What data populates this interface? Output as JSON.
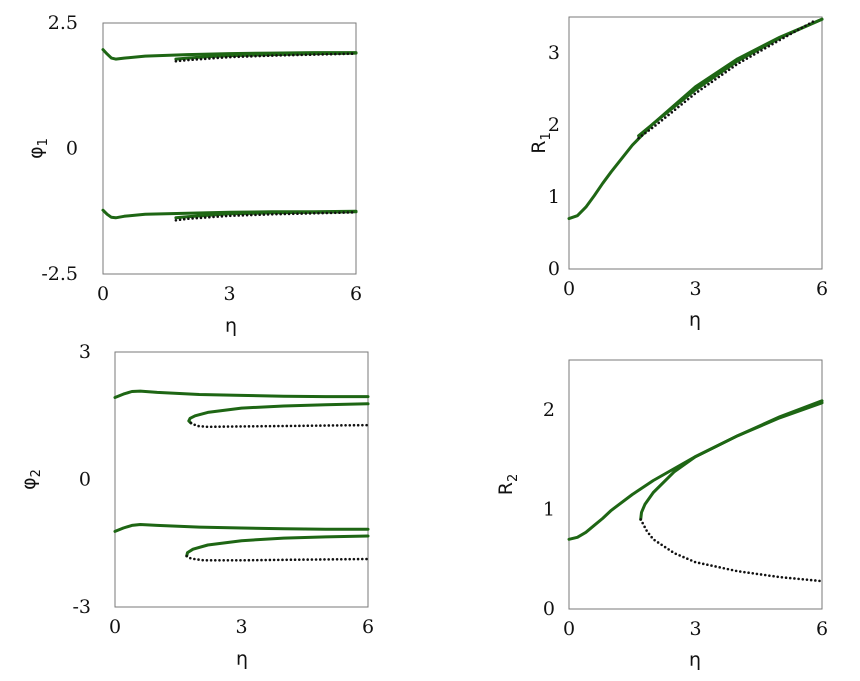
{
  "chart_data": [
    {
      "type": "line",
      "xlabel": "η",
      "ylabel": "φ",
      "ylabel_sub": "1",
      "xlim": [
        0,
        6
      ],
      "ylim": [
        -2.5,
        2.5
      ],
      "xticks": [
        "0",
        "3",
        "6"
      ],
      "yticks": [
        "2.5",
        "0",
        "-2.5"
      ],
      "series": [
        {
          "style": "solid",
          "points": [
            [
              0.0,
              1.97
            ],
            [
              0.1,
              1.88
            ],
            [
              0.2,
              1.8
            ],
            [
              0.3,
              1.78
            ],
            [
              0.5,
              1.8
            ],
            [
              1.0,
              1.84
            ],
            [
              2.0,
              1.87
            ],
            [
              3.0,
              1.89
            ],
            [
              4.0,
              1.9
            ],
            [
              5.0,
              1.91
            ],
            [
              6.0,
              1.91
            ]
          ]
        },
        {
          "style": "solid",
          "points": [
            [
              1.73,
              1.78
            ],
            [
              2.0,
              1.8
            ],
            [
              2.5,
              1.83
            ],
            [
              3.0,
              1.85
            ],
            [
              4.0,
              1.87
            ],
            [
              5.0,
              1.89
            ],
            [
              6.0,
              1.9
            ]
          ]
        },
        {
          "style": "dotted",
          "points": [
            [
              1.73,
              1.74
            ],
            [
              2.0,
              1.76
            ],
            [
              2.5,
              1.79
            ],
            [
              3.0,
              1.82
            ],
            [
              4.0,
              1.85
            ],
            [
              5.0,
              1.87
            ],
            [
              6.0,
              1.89
            ]
          ]
        },
        {
          "style": "solid",
          "points": [
            [
              0.0,
              -1.23
            ],
            [
              0.1,
              -1.31
            ],
            [
              0.2,
              -1.37
            ],
            [
              0.3,
              -1.38
            ],
            [
              0.5,
              -1.35
            ],
            [
              1.0,
              -1.31
            ],
            [
              2.0,
              -1.29
            ],
            [
              3.0,
              -1.27
            ],
            [
              4.0,
              -1.26
            ],
            [
              5.0,
              -1.26
            ],
            [
              6.0,
              -1.25
            ]
          ]
        },
        {
          "style": "solid",
          "points": [
            [
              1.73,
              -1.38
            ],
            [
              2.0,
              -1.36
            ],
            [
              2.5,
              -1.33
            ],
            [
              3.0,
              -1.3
            ],
            [
              4.0,
              -1.28
            ],
            [
              5.0,
              -1.27
            ],
            [
              6.0,
              -1.26
            ]
          ]
        },
        {
          "style": "dotted",
          "points": [
            [
              1.73,
              -1.43
            ],
            [
              2.0,
              -1.4
            ],
            [
              2.5,
              -1.37
            ],
            [
              3.0,
              -1.34
            ],
            [
              4.0,
              -1.31
            ],
            [
              5.0,
              -1.29
            ],
            [
              6.0,
              -1.27
            ]
          ]
        }
      ]
    },
    {
      "type": "line",
      "xlabel": "η",
      "ylabel": "R",
      "ylabel_sub": "1",
      "xlim": [
        0,
        6
      ],
      "ylim": [
        0,
        3.5
      ],
      "xticks": [
        "0",
        "3",
        "6"
      ],
      "yticks": [
        "0",
        "1",
        "2",
        "3"
      ],
      "series": [
        {
          "style": "solid",
          "points": [
            [
              0.0,
              0.7
            ],
            [
              0.2,
              0.74
            ],
            [
              0.4,
              0.86
            ],
            [
              0.6,
              1.02
            ],
            [
              0.8,
              1.19
            ],
            [
              1.0,
              1.35
            ],
            [
              1.5,
              1.72
            ],
            [
              2.0,
              2.02
            ],
            [
              3.0,
              2.53
            ],
            [
              4.0,
              2.92
            ],
            [
              5.0,
              3.22
            ],
            [
              6.0,
              3.47
            ]
          ]
        },
        {
          "style": "solid",
          "points": [
            [
              1.65,
              1.85
            ],
            [
              2.0,
              2.02
            ],
            [
              3.0,
              2.49
            ],
            [
              4.0,
              2.89
            ],
            [
              5.0,
              3.21
            ],
            [
              6.0,
              3.47
            ]
          ]
        },
        {
          "style": "dotted",
          "points": [
            [
              1.65,
              1.82
            ],
            [
              2.0,
              1.97
            ],
            [
              3.0,
              2.44
            ],
            [
              4.0,
              2.85
            ],
            [
              5.0,
              3.18
            ],
            [
              5.8,
              3.44
            ]
          ]
        }
      ]
    },
    {
      "type": "line",
      "xlabel": "η",
      "ylabel": "φ",
      "ylabel_sub": "2",
      "xlim": [
        0,
        6
      ],
      "ylim": [
        -3,
        3
      ],
      "xticks": [
        "0",
        "3",
        "6"
      ],
      "yticks": [
        "3",
        "0",
        "-3"
      ],
      "series": [
        {
          "style": "solid",
          "points": [
            [
              0.0,
              1.93
            ],
            [
              0.2,
              2.01
            ],
            [
              0.4,
              2.07
            ],
            [
              0.6,
              2.08
            ],
            [
              1.0,
              2.05
            ],
            [
              2.0,
              2.0
            ],
            [
              3.0,
              1.98
            ],
            [
              4.0,
              1.96
            ],
            [
              5.0,
              1.95
            ],
            [
              6.0,
              1.95
            ]
          ]
        },
        {
          "style": "solid",
          "points": [
            [
              1.8,
              1.33
            ],
            [
              1.75,
              1.38
            ],
            [
              1.78,
              1.44
            ],
            [
              1.9,
              1.5
            ],
            [
              2.2,
              1.58
            ],
            [
              3.0,
              1.68
            ],
            [
              4.0,
              1.73
            ],
            [
              5.0,
              1.76
            ],
            [
              6.0,
              1.78
            ]
          ]
        },
        {
          "style": "dotted",
          "points": [
            [
              1.8,
              1.33
            ],
            [
              1.95,
              1.26
            ],
            [
              2.2,
              1.24
            ],
            [
              3.0,
              1.25
            ],
            [
              4.0,
              1.26
            ],
            [
              5.0,
              1.27
            ],
            [
              6.0,
              1.28
            ]
          ]
        },
        {
          "style": "solid",
          "points": [
            [
              0.0,
              -1.22
            ],
            [
              0.2,
              -1.14
            ],
            [
              0.4,
              -1.08
            ],
            [
              0.6,
              -1.06
            ],
            [
              1.0,
              -1.08
            ],
            [
              2.0,
              -1.12
            ],
            [
              3.0,
              -1.14
            ],
            [
              4.0,
              -1.16
            ],
            [
              5.0,
              -1.17
            ],
            [
              6.0,
              -1.17
            ]
          ]
        },
        {
          "style": "solid",
          "points": [
            [
              1.7,
              -1.8
            ],
            [
              1.72,
              -1.72
            ],
            [
              1.85,
              -1.64
            ],
            [
              2.2,
              -1.54
            ],
            [
              3.0,
              -1.44
            ],
            [
              4.0,
              -1.38
            ],
            [
              5.0,
              -1.35
            ],
            [
              6.0,
              -1.33
            ]
          ]
        },
        {
          "style": "dotted",
          "points": [
            [
              1.7,
              -1.8
            ],
            [
              1.8,
              -1.86
            ],
            [
              2.1,
              -1.9
            ],
            [
              3.0,
              -1.9
            ],
            [
              4.0,
              -1.89
            ],
            [
              5.0,
              -1.88
            ],
            [
              6.0,
              -1.87
            ]
          ]
        }
      ]
    },
    {
      "type": "line",
      "xlabel": "η",
      "ylabel": "R",
      "ylabel_sub": "2",
      "xlim": [
        0,
        6
      ],
      "ylim": [
        0,
        2.5
      ],
      "xticks": [
        "0",
        "3",
        "6"
      ],
      "yticks": [
        "0",
        "1",
        "2"
      ],
      "series": [
        {
          "style": "solid",
          "points": [
            [
              0.0,
              0.7
            ],
            [
              0.2,
              0.72
            ],
            [
              0.4,
              0.77
            ],
            [
              0.6,
              0.84
            ],
            [
              0.8,
              0.91
            ],
            [
              1.0,
              0.99
            ],
            [
              1.5,
              1.15
            ],
            [
              2.0,
              1.29
            ],
            [
              3.0,
              1.53
            ],
            [
              4.0,
              1.74
            ],
            [
              5.0,
              1.93
            ],
            [
              6.0,
              2.09
            ]
          ]
        },
        {
          "style": "solid",
          "points": [
            [
              1.7,
              0.9
            ],
            [
              1.72,
              0.97
            ],
            [
              1.8,
              1.05
            ],
            [
              2.0,
              1.17
            ],
            [
              2.5,
              1.38
            ],
            [
              3.0,
              1.53
            ],
            [
              4.0,
              1.74
            ],
            [
              5.0,
              1.92
            ],
            [
              6.0,
              2.07
            ]
          ]
        },
        {
          "style": "dotted",
          "points": [
            [
              1.7,
              0.9
            ],
            [
              1.85,
              0.78
            ],
            [
              2.0,
              0.7
            ],
            [
              2.5,
              0.56
            ],
            [
              3.0,
              0.47
            ],
            [
              4.0,
              0.38
            ],
            [
              5.0,
              0.32
            ],
            [
              6.0,
              0.28
            ]
          ]
        }
      ]
    }
  ]
}
